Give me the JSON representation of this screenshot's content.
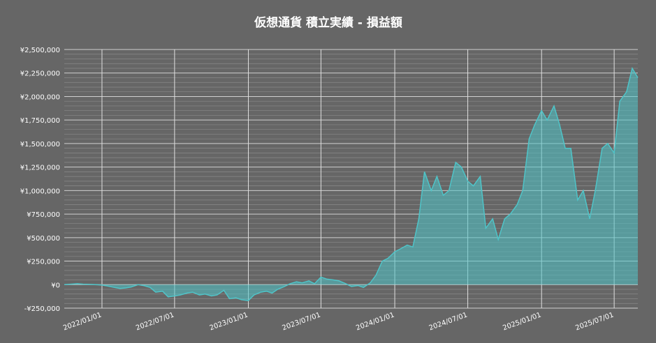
{
  "chart_data": {
    "type": "area",
    "title": "仮想通貨 積立実績 - 損益額",
    "x": [
      "2021-09-29",
      "2021-10-15",
      "2021-11-01",
      "2021-11-15",
      "2021-12-01",
      "2021-12-15",
      "2022-01-01",
      "2022-01-15",
      "2022-02-01",
      "2022-02-15",
      "2022-03-01",
      "2022-03-15",
      "2022-04-01",
      "2022-04-15",
      "2022-05-01",
      "2022-05-15",
      "2022-06-01",
      "2022-06-15",
      "2022-07-01",
      "2022-07-15",
      "2022-08-01",
      "2022-08-15",
      "2022-09-01",
      "2022-09-15",
      "2022-10-01",
      "2022-10-15",
      "2022-11-01",
      "2022-11-15",
      "2022-12-01",
      "2022-12-15",
      "2023-01-01",
      "2023-01-15",
      "2023-02-01",
      "2023-02-15",
      "2023-03-01",
      "2023-03-15",
      "2023-04-01",
      "2023-04-15",
      "2023-05-01",
      "2023-05-15",
      "2023-06-01",
      "2023-06-15",
      "2023-07-01",
      "2023-07-15",
      "2023-08-01",
      "2023-08-15",
      "2023-09-01",
      "2023-09-15",
      "2023-10-01",
      "2023-10-15",
      "2023-11-01",
      "2023-11-15",
      "2023-12-01",
      "2023-12-15",
      "2024-01-01",
      "2024-01-15",
      "2024-02-01",
      "2024-02-15",
      "2024-03-01",
      "2024-03-15",
      "2024-04-01",
      "2024-04-15",
      "2024-05-01",
      "2024-05-15",
      "2024-06-01",
      "2024-06-15",
      "2024-07-01",
      "2024-07-15",
      "2024-08-01",
      "2024-08-15",
      "2024-09-01",
      "2024-09-15",
      "2024-10-01",
      "2024-10-15",
      "2024-11-01",
      "2024-11-15",
      "2024-12-01",
      "2024-12-15",
      "2025-01-01",
      "2025-01-15",
      "2025-02-01",
      "2025-02-15",
      "2025-03-01",
      "2025-03-15",
      "2025-04-01",
      "2025-04-15",
      "2025-05-01",
      "2025-05-15",
      "2025-06-01",
      "2025-06-15",
      "2025-07-01",
      "2025-07-15",
      "2025-08-01",
      "2025-08-15",
      "2025-08-29"
    ],
    "values": [
      0,
      5000,
      10000,
      5000,
      3000,
      0,
      -5000,
      -15000,
      -30000,
      -40000,
      -35000,
      -25000,
      0,
      -10000,
      -30000,
      -80000,
      -70000,
      -130000,
      -120000,
      -110000,
      -90000,
      -80000,
      -110000,
      -100000,
      -120000,
      -110000,
      -60000,
      -150000,
      -140000,
      -160000,
      -170000,
      -110000,
      -80000,
      -70000,
      -90000,
      -50000,
      -20000,
      10000,
      30000,
      20000,
      40000,
      10000,
      80000,
      60000,
      50000,
      40000,
      10000,
      -20000,
      -10000,
      -30000,
      20000,
      100000,
      250000,
      280000,
      350000,
      380000,
      420000,
      400000,
      700000,
      1200000,
      1000000,
      1150000,
      950000,
      1000000,
      1300000,
      1250000,
      1100000,
      1050000,
      1150000,
      600000,
      700000,
      480000,
      700000,
      750000,
      850000,
      1000000,
      1550000,
      1700000,
      1850000,
      1750000,
      1900000,
      1700000,
      1450000,
      1450000,
      900000,
      1000000,
      700000,
      1000000,
      1450000,
      1500000,
      1400000,
      1950000,
      2050000,
      2300000,
      2200000
    ],
    "color": "#4fc4c8",
    "xlim": [
      "2021-09-29",
      "2025-08-29"
    ],
    "xticks": [
      {
        "value": "2022-01-01",
        "label": "2022/01/01"
      },
      {
        "value": "2022-07-01",
        "label": "2022/07/01"
      },
      {
        "value": "2023-01-01",
        "label": "2023/01/01"
      },
      {
        "value": "2023-07-01",
        "label": "2023/07/01"
      },
      {
        "value": "2024-01-01",
        "label": "2024/01/01"
      },
      {
        "value": "2024-07-01",
        "label": "2024/07/01"
      },
      {
        "value": "2025-01-01",
        "label": "2025/01/01"
      },
      {
        "value": "2025-07-01",
        "label": "2025/07/01"
      }
    ],
    "ylim": [
      -250000,
      2500000
    ],
    "yticks": [
      {
        "value": -250000,
        "label": "-¥250,000"
      },
      {
        "value": 0,
        "label": "¥0"
      },
      {
        "value": 250000,
        "label": "¥250,000"
      },
      {
        "value": 500000,
        "label": "¥500,000"
      },
      {
        "value": 750000,
        "label": "¥750,000"
      },
      {
        "value": 1000000,
        "label": "¥1,000,000"
      },
      {
        "value": 1250000,
        "label": "¥1,250,000"
      },
      {
        "value": 1500000,
        "label": "¥1,500,000"
      },
      {
        "value": 1750000,
        "label": "¥1,750,000"
      },
      {
        "value": 2000000,
        "label": "¥2,000,000"
      },
      {
        "value": 2250000,
        "label": "¥2,250,000"
      },
      {
        "value": 2500000,
        "label": "¥2,500,000"
      }
    ],
    "grid": true
  }
}
